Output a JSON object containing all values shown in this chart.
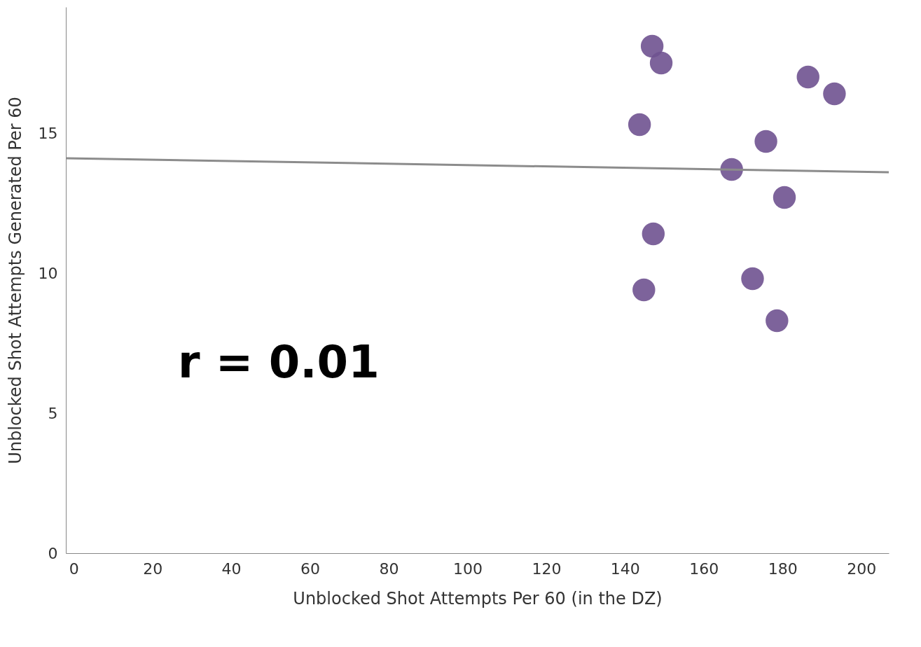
{
  "chart_data": {
    "type": "scatter",
    "xlabel": "Unblocked Shot Attempts Per 60 (in the DZ)",
    "ylabel": "Unblocked Shot Attempts Generated Per 60",
    "x": [
      146.9,
      149.2,
      143.7,
      186.5,
      193.2,
      175.8,
      167.1,
      180.5,
      147.2,
      144.8,
      172.4,
      178.6
    ],
    "series": [
      {
        "color": "#6f5290",
        "marker": "circle",
        "values": [
          18.1,
          17.5,
          15.3,
          17.0,
          16.4,
          14.7,
          13.7,
          12.7,
          11.4,
          9.4,
          9.8,
          8.3
        ]
      },
      {
        "type": "line",
        "color": "#8c8c8c",
        "x": [
          -2,
          207
        ],
        "values": [
          14.1,
          13.6
        ]
      }
    ],
    "xlim": [
      -2,
      207
    ],
    "xticks": [
      0,
      20,
      40,
      60,
      80,
      100,
      120,
      140,
      160,
      180,
      200
    ],
    "ylim": [
      0,
      19.5
    ],
    "yticks": [
      0,
      5,
      10,
      15
    ],
    "grid": false,
    "annotations": [
      "r = 0.01"
    ]
  }
}
